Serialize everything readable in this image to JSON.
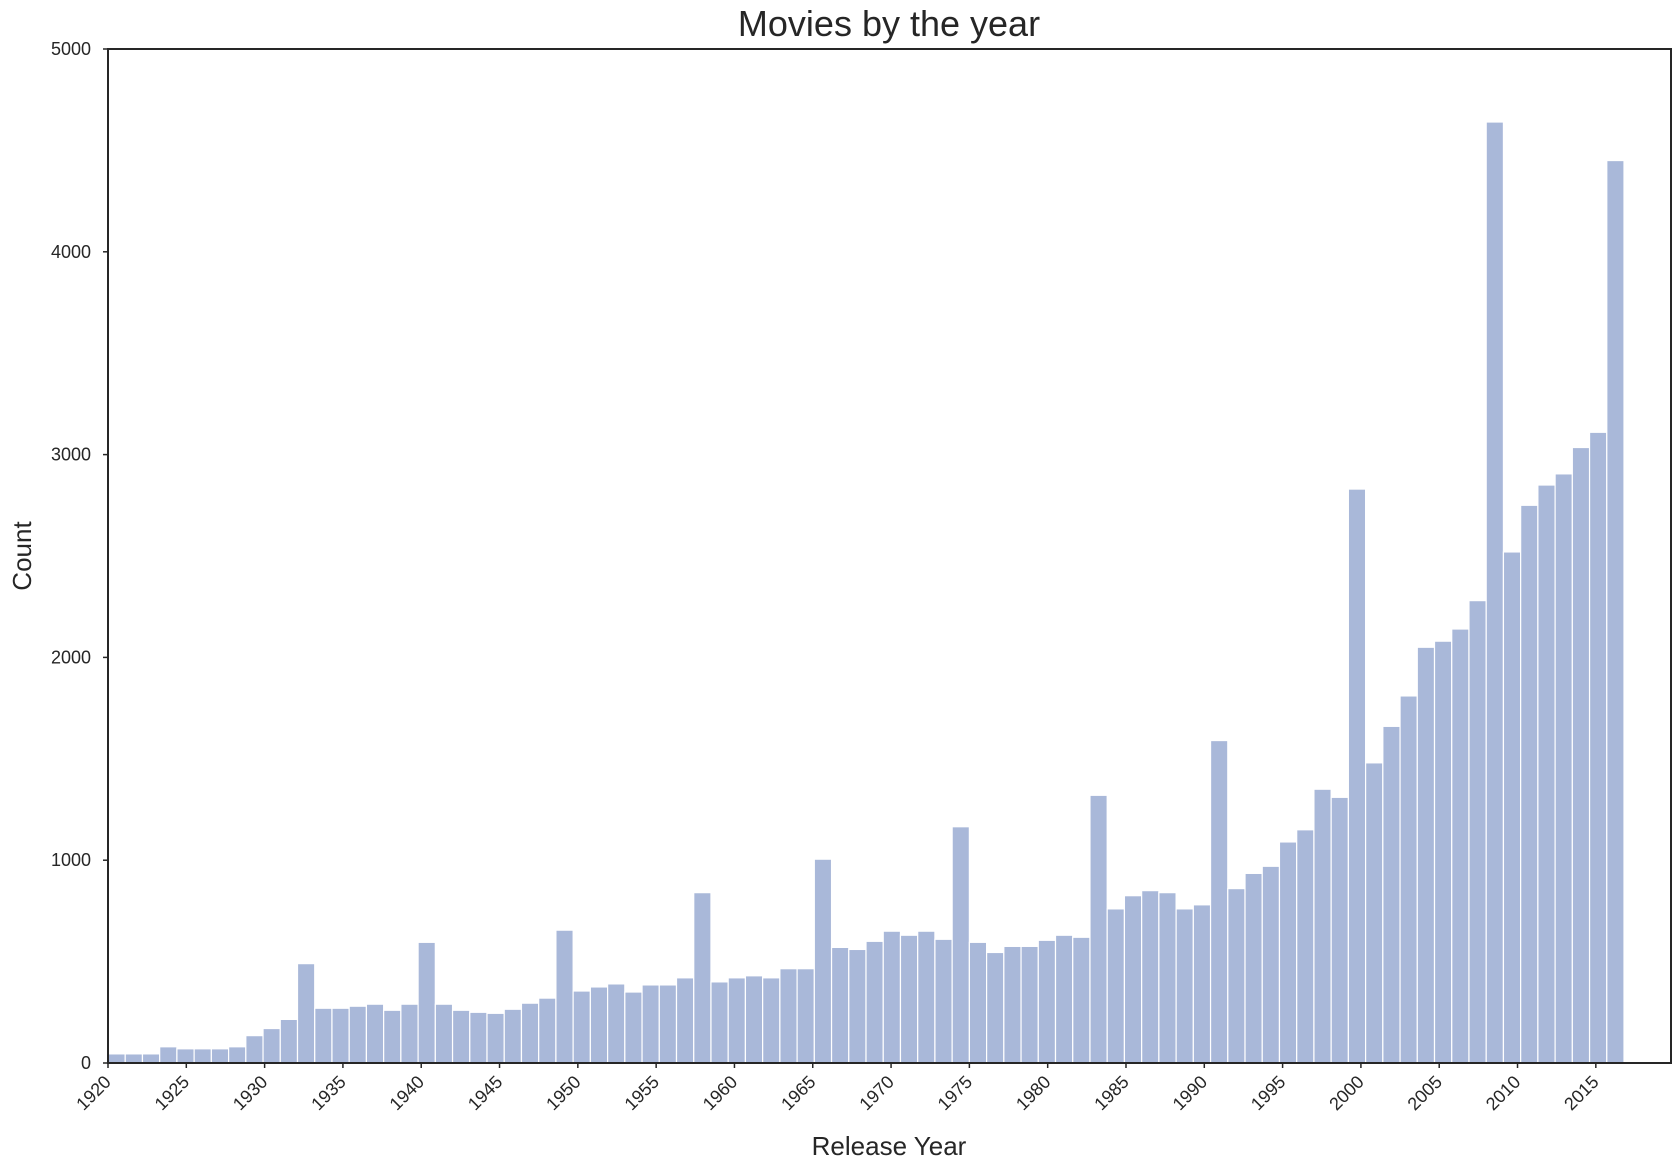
{
  "chart_data": {
    "type": "bar",
    "title": "Movies by the year",
    "xlabel": "Release Year",
    "ylabel": "Count",
    "xlim": [
      1920,
      2019.8
    ],
    "ylim": [
      0,
      5000
    ],
    "y_ticks": [
      0,
      1000,
      2000,
      3000,
      4000,
      5000
    ],
    "x_ticks": [
      1920,
      1925,
      1930,
      1935,
      1940,
      1945,
      1950,
      1955,
      1960,
      1965,
      1970,
      1975,
      1980,
      1985,
      1990,
      1995,
      2000,
      2005,
      2010,
      2015
    ],
    "bin_start": 1920,
    "bin_width": 1.1,
    "values": [
      45,
      45,
      45,
      80,
      70,
      70,
      70,
      80,
      135,
      170,
      215,
      490,
      270,
      270,
      280,
      290,
      260,
      290,
      595,
      290,
      260,
      250,
      245,
      265,
      295,
      320,
      655,
      355,
      375,
      390,
      350,
      385,
      385,
      420,
      840,
      400,
      420,
      430,
      420,
      465,
      465,
      1005,
      570,
      560,
      600,
      650,
      630,
      650,
      610,
      1165,
      595,
      545,
      575,
      575,
      605,
      630,
      620,
      1320,
      760,
      825,
      850,
      840,
      760,
      780,
      1590,
      860,
      935,
      970,
      1090,
      1150,
      1350,
      1310,
      2830,
      1480,
      1660,
      1810,
      2050,
      2080,
      2140,
      2280,
      4640,
      2520,
      2750,
      2850,
      2905,
      3035,
      3110,
      4450
    ],
    "bar_color": "#a9b8d9",
    "grid": false
  }
}
